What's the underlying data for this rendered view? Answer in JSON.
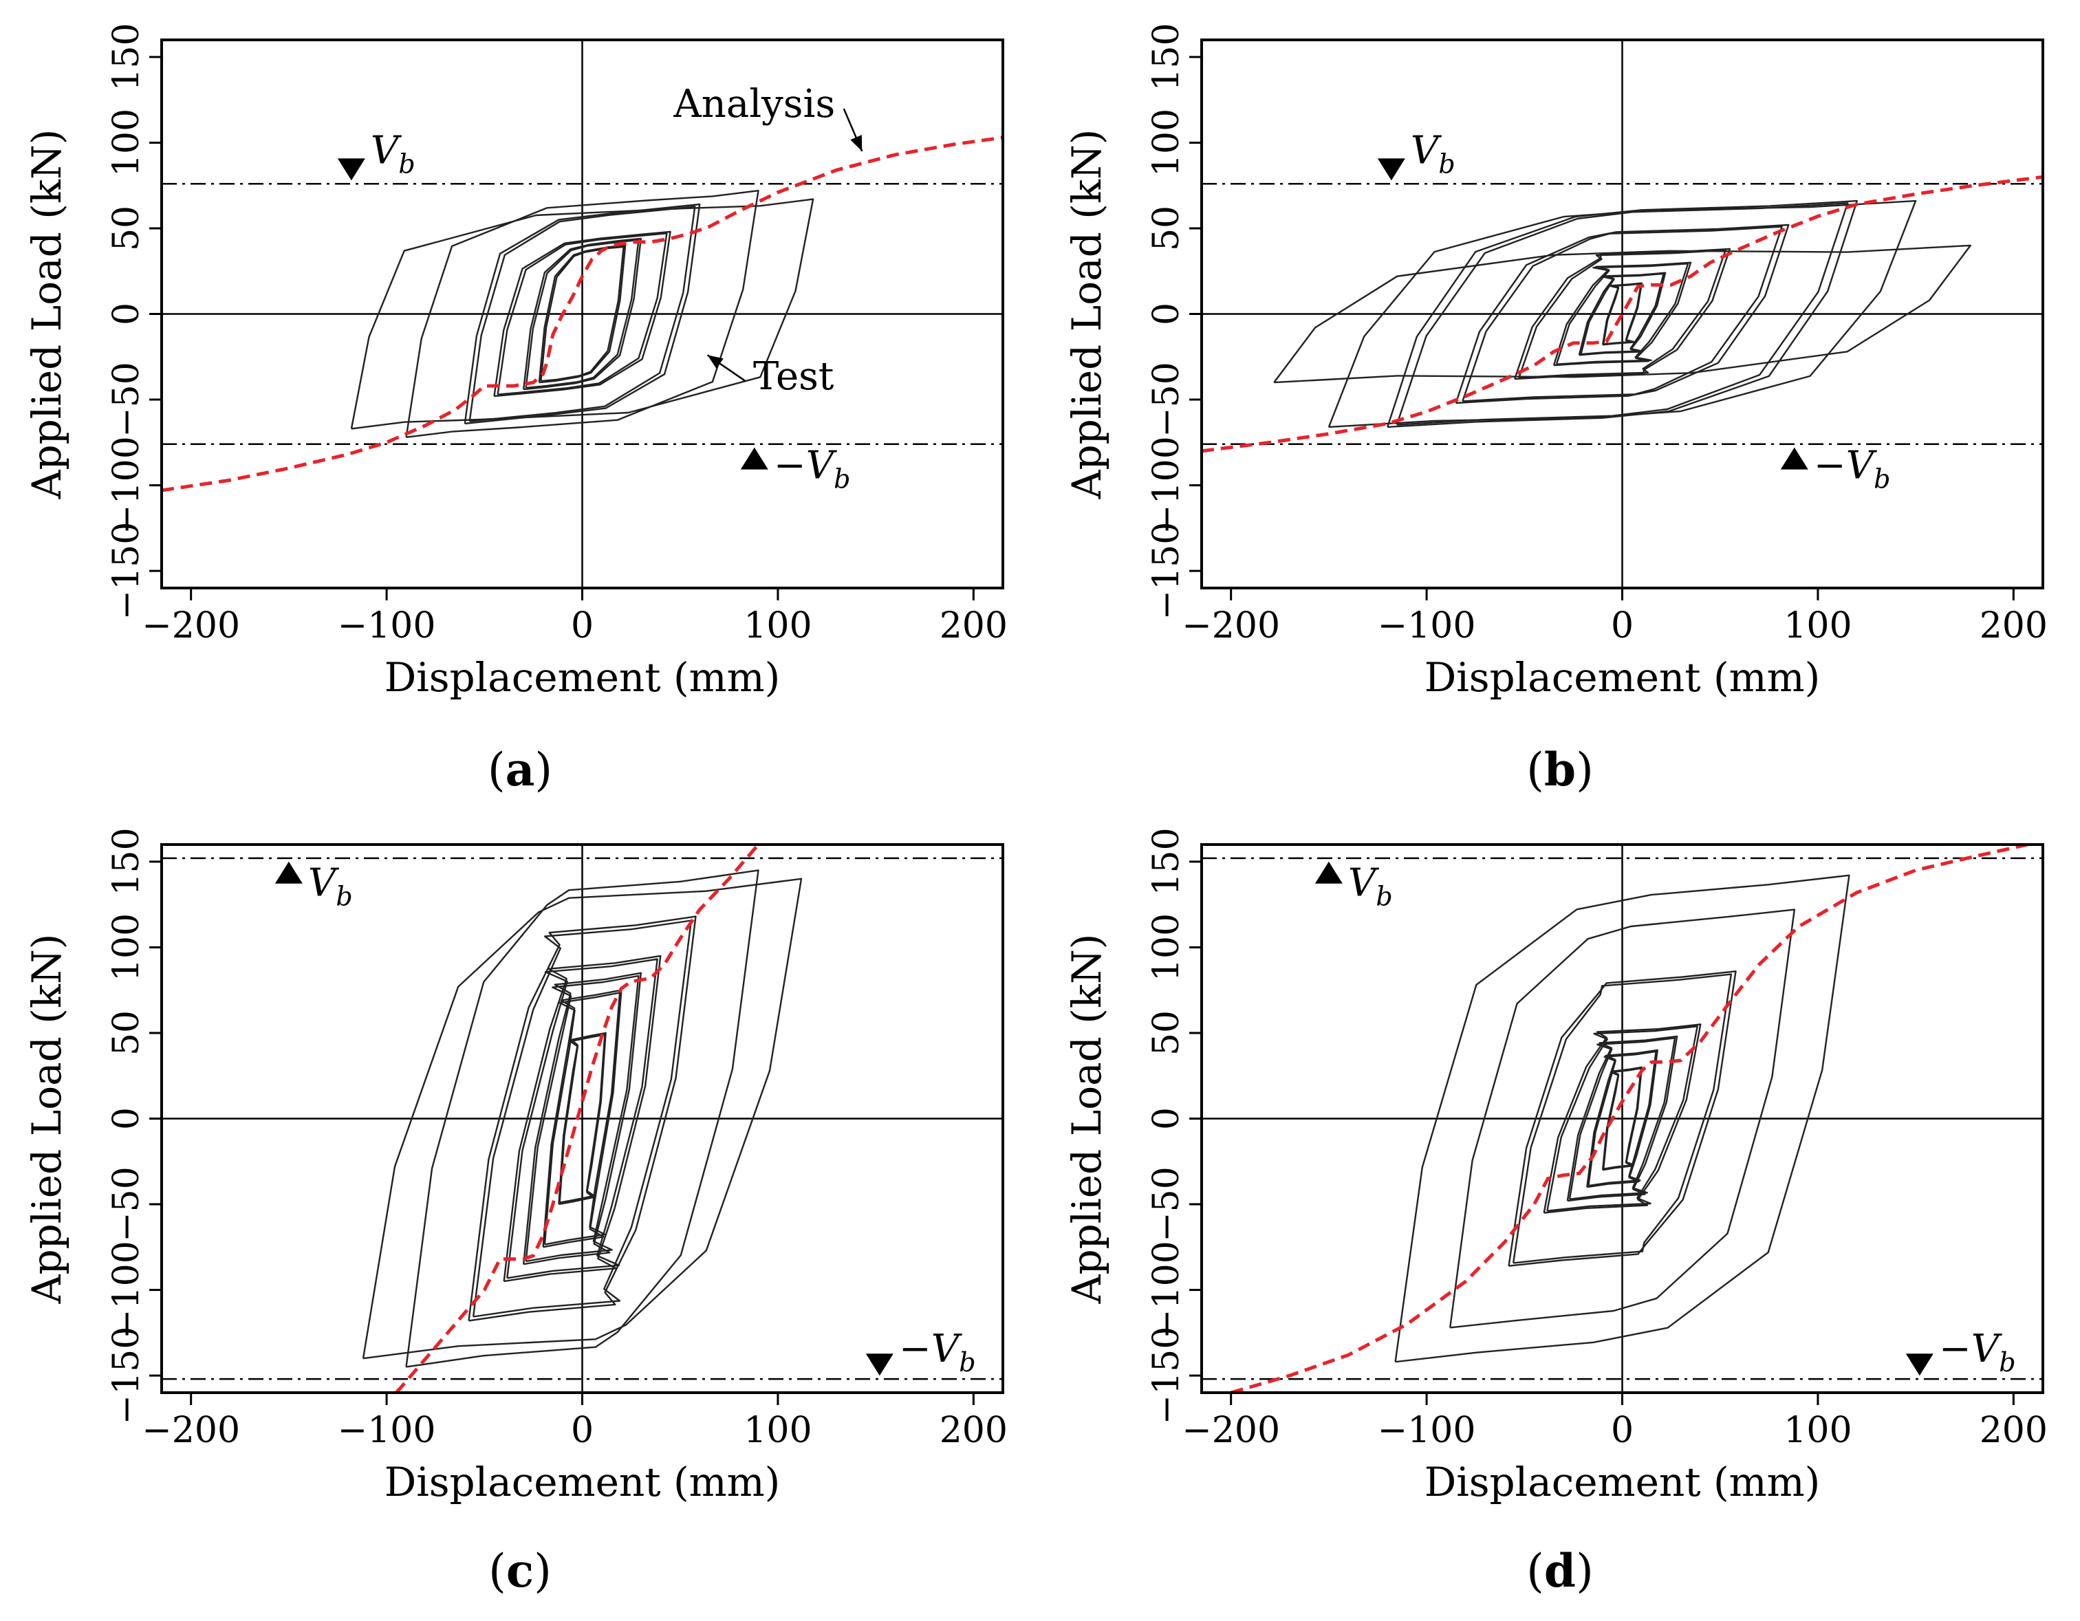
{
  "figure": {
    "captions": [
      "a",
      "b",
      "c",
      "d"
    ]
  },
  "chart_data": [
    {
      "id": "a",
      "type": "line",
      "xlabel": "Displacement (mm)",
      "ylabel": "Applied Load (kN)",
      "xlim": [
        -215,
        215
      ],
      "ylim": [
        -160,
        160
      ],
      "xticks": [
        -200,
        -100,
        0,
        100,
        200
      ],
      "yticks": [
        -150,
        -100,
        -50,
        0,
        50,
        100,
        150
      ],
      "xtick_labels": [
        "−200",
        "−100",
        "0",
        "100",
        "200"
      ],
      "ytick_labels": [
        "−150",
        "−100",
        "−50",
        "0",
        "50",
        "100",
        "150"
      ],
      "vb": 76,
      "vb_label": "V",
      "vb_sub": "b",
      "neg_sign": "−",
      "vb_marker_up": false,
      "vb_marker_x": 118,
      "annotations": [
        {
          "text": "Analysis",
          "x": 88,
          "y": 115,
          "ax": 143,
          "ay": 95
        },
        {
          "text": "Test",
          "x": 108,
          "y": -44,
          "ax": 64,
          "ay": -24
        }
      ],
      "series": [
        {
          "name": "Analysis",
          "color": "#e8232a",
          "points": [
            [
              -215,
              -103
            ],
            [
              -180,
              -97
            ],
            [
              -150,
              -90
            ],
            [
              -120,
              -82
            ],
            [
              -100,
              -75
            ],
            [
              -80,
              -65
            ],
            [
              -65,
              -56
            ],
            [
              -55,
              -47
            ],
            [
              -50,
              -42
            ],
            [
              -40,
              -42
            ],
            [
              -35,
              -42
            ],
            [
              -25,
              -40
            ],
            [
              -20,
              -35
            ],
            [
              -18,
              -28
            ],
            [
              -15,
              -12
            ],
            [
              -10,
              0
            ],
            [
              -5,
              10
            ],
            [
              0,
              22
            ],
            [
              5,
              32
            ],
            [
              10,
              37
            ],
            [
              15,
              40
            ],
            [
              20,
              41
            ],
            [
              27,
              42
            ],
            [
              35,
              42
            ],
            [
              45,
              44
            ],
            [
              55,
              47
            ],
            [
              65,
              51
            ],
            [
              80,
              60
            ],
            [
              100,
              71
            ],
            [
              130,
              84
            ],
            [
              160,
              93
            ],
            [
              190,
              99
            ],
            [
              215,
              103
            ]
          ]
        },
        {
          "name": "Test",
          "color": "#222222",
          "loops": [
            {
              "xmax": 22,
              "ymax": 40,
              "w": 9,
              "h": 6,
              "cycles": 2
            },
            {
              "xmax": 30,
              "ymax": 44,
              "w": 12,
              "h": 8,
              "cycles": 2
            },
            {
              "xmax": 45,
              "ymax": 48,
              "w": 16,
              "h": 10,
              "cycles": 2
            },
            {
              "xmax": 60,
              "ymax": 64,
              "w": 20,
              "h": 14,
              "cycles": 2
            },
            {
              "xmax": 90,
              "ymax": 72,
              "w": 26,
              "h": 22,
              "cycles": 1
            },
            {
              "xmax": 118,
              "ymax": 67,
              "w": 30,
              "h": 26,
              "cycles": 1
            }
          ]
        }
      ]
    },
    {
      "id": "b",
      "type": "line",
      "xlabel": "Displacement (mm)",
      "ylabel": "Applied Load (kN)",
      "xlim": [
        -215,
        215
      ],
      "ylim": [
        -160,
        160
      ],
      "xticks": [
        -200,
        -100,
        0,
        100,
        200
      ],
      "yticks": [
        -150,
        -100,
        -50,
        0,
        50,
        100,
        150
      ],
      "xtick_labels": [
        "−200",
        "−100",
        "0",
        "100",
        "200"
      ],
      "ytick_labels": [
        "−150",
        "−100",
        "−50",
        "0",
        "50",
        "100",
        "150"
      ],
      "vb": 76,
      "vb_label": "V",
      "vb_sub": "b",
      "neg_sign": "−",
      "vb_marker_up": false,
      "vb_marker_x": 118,
      "annotations": [],
      "series": [
        {
          "name": "Analysis",
          "color": "#e8232a",
          "points": [
            [
              -215,
              -80
            ],
            [
              -180,
              -75
            ],
            [
              -150,
              -70
            ],
            [
              -120,
              -64
            ],
            [
              -100,
              -57
            ],
            [
              -80,
              -48
            ],
            [
              -60,
              -38
            ],
            [
              -45,
              -30
            ],
            [
              -35,
              -22
            ],
            [
              -25,
              -17
            ],
            [
              -15,
              -17
            ],
            [
              -8,
              -16
            ],
            [
              -5,
              -10
            ],
            [
              0,
              0
            ],
            [
              5,
              10
            ],
            [
              8,
              16
            ],
            [
              15,
              17
            ],
            [
              25,
              17
            ],
            [
              35,
              22
            ],
            [
              45,
              30
            ],
            [
              60,
              38
            ],
            [
              80,
              48
            ],
            [
              100,
              57
            ],
            [
              120,
              64
            ],
            [
              150,
              70
            ],
            [
              180,
              75
            ],
            [
              215,
              80
            ]
          ]
        },
        {
          "name": "Test",
          "color": "#222222",
          "loops": [
            {
              "xmax": 10,
              "ymax": 18,
              "w": 7,
              "h": 5,
              "cycles": 2
            },
            {
              "xmax": 22,
              "ymax": 24,
              "w": 14,
              "h": 8,
              "cycles": 2
            },
            {
              "xmax": 35,
              "ymax": 30,
              "w": 22,
              "h": 10,
              "cycles": 2
            },
            {
              "xmax": 55,
              "ymax": 38,
              "w": 30,
              "h": 12,
              "cycles": 2
            },
            {
              "xmax": 85,
              "ymax": 52,
              "w": 40,
              "h": 16,
              "cycles": 2
            },
            {
              "xmax": 120,
              "ymax": 66,
              "w": 50,
              "h": 20,
              "cycles": 2
            },
            {
              "xmax": 150,
              "ymax": 66,
              "w": 60,
              "h": 24,
              "cycles": 1
            },
            {
              "xmax": 178,
              "ymax": 40,
              "w": 70,
              "h": 26,
              "cycles": 1
            }
          ]
        }
      ]
    },
    {
      "id": "c",
      "type": "line",
      "xlabel": "Displacement (mm)",
      "ylabel": "Applied Load (kN)",
      "xlim": [
        -215,
        215
      ],
      "ylim": [
        -160,
        160
      ],
      "xticks": [
        -200,
        -100,
        0,
        100,
        200
      ],
      "yticks": [
        -150,
        -100,
        -50,
        0,
        50,
        100,
        150
      ],
      "xtick_labels": [
        "−200",
        "−100",
        "0",
        "100",
        "200"
      ],
      "ytick_labels": [
        "−150",
        "−100",
        "−50",
        "0",
        "50",
        "100",
        "150"
      ],
      "vb": 152,
      "vb_label": "V",
      "vb_sub": "b",
      "neg_sign": "−",
      "vb_marker_up": true,
      "vb_marker_x": 150,
      "annotations": [],
      "series": [
        {
          "name": "Analysis",
          "color": "#e8232a",
          "points": [
            [
              -95,
              -160
            ],
            [
              -80,
              -140
            ],
            [
              -65,
              -120
            ],
            [
              -50,
              -100
            ],
            [
              -42,
              -82
            ],
            [
              -30,
              -82
            ],
            [
              -25,
              -80
            ],
            [
              -20,
              -68
            ],
            [
              -15,
              -50
            ],
            [
              -10,
              -30
            ],
            [
              -5,
              -10
            ],
            [
              0,
              10
            ],
            [
              5,
              30
            ],
            [
              10,
              48
            ],
            [
              15,
              65
            ],
            [
              20,
              76
            ],
            [
              25,
              80
            ],
            [
              35,
              82
            ],
            [
              42,
              90
            ],
            [
              50,
              105
            ],
            [
              60,
              122
            ],
            [
              75,
              140
            ],
            [
              90,
              160
            ]
          ]
        },
        {
          "name": "Test",
          "color": "#222222",
          "loops": [
            {
              "xmax": 12,
              "ymax": 50,
              "w": 8,
              "h": 10,
              "cycles": 2
            },
            {
              "xmax": 20,
              "ymax": 75,
              "w": 14,
              "h": 18,
              "cycles": 2
            },
            {
              "xmax": 30,
              "ymax": 85,
              "w": 20,
              "h": 24,
              "cycles": 2
            },
            {
              "xmax": 40,
              "ymax": 95,
              "w": 26,
              "h": 28,
              "cycles": 2
            },
            {
              "xmax": 58,
              "ymax": 118,
              "w": 34,
              "h": 34,
              "cycles": 2
            },
            {
              "xmax": 90,
              "ymax": 145,
              "w": 44,
              "h": 44,
              "cycles": 1
            },
            {
              "xmax": 112,
              "ymax": 140,
              "w": 54,
              "h": 48,
              "cycles": 1
            }
          ]
        }
      ]
    },
    {
      "id": "d",
      "type": "line",
      "xlabel": "Displacement (mm)",
      "ylabel": "Applied Load (kN)",
      "xlim": [
        -215,
        215
      ],
      "ylim": [
        -160,
        160
      ],
      "xticks": [
        -200,
        -100,
        0,
        100,
        200
      ],
      "yticks": [
        -150,
        -100,
        -50,
        0,
        50,
        100,
        150
      ],
      "xtick_labels": [
        "−200",
        "−100",
        "0",
        "100",
        "200"
      ],
      "ytick_labels": [
        "−150",
        "−100",
        "−50",
        "0",
        "50",
        "100",
        "150"
      ],
      "vb": 152,
      "vb_label": "V",
      "vb_sub": "b",
      "neg_sign": "−",
      "vb_marker_up": true,
      "vb_marker_x": 150,
      "annotations": [],
      "series": [
        {
          "name": "Analysis",
          "color": "#e8232a",
          "points": [
            [
              -200,
              -160
            ],
            [
              -170,
              -150
            ],
            [
              -140,
              -138
            ],
            [
              -110,
              -120
            ],
            [
              -80,
              -95
            ],
            [
              -60,
              -72
            ],
            [
              -45,
              -50
            ],
            [
              -38,
              -35
            ],
            [
              -30,
              -33
            ],
            [
              -22,
              -32
            ],
            [
              -15,
              -22
            ],
            [
              -10,
              -10
            ],
            [
              0,
              10
            ],
            [
              10,
              28
            ],
            [
              15,
              33
            ],
            [
              22,
              33
            ],
            [
              30,
              34
            ],
            [
              40,
              45
            ],
            [
              55,
              68
            ],
            [
              70,
              90
            ],
            [
              90,
              112
            ],
            [
              120,
              132
            ],
            [
              150,
              145
            ],
            [
              180,
              153
            ],
            [
              215,
              162
            ]
          ]
        },
        {
          "name": "Test",
          "color": "#222222",
          "loops": [
            {
              "xmax": 10,
              "ymax": 30,
              "w": 7,
              "h": 8,
              "cycles": 2
            },
            {
              "xmax": 18,
              "ymax": 40,
              "w": 12,
              "h": 12,
              "cycles": 2
            },
            {
              "xmax": 28,
              "ymax": 48,
              "w": 18,
              "h": 15,
              "cycles": 2
            },
            {
              "xmax": 40,
              "ymax": 55,
              "w": 24,
              "h": 18,
              "cycles": 2
            },
            {
              "xmax": 58,
              "ymax": 86,
              "w": 30,
              "h": 22,
              "cycles": 2
            },
            {
              "xmax": 88,
              "ymax": 122,
              "w": 38,
              "h": 28,
              "cycles": 1
            },
            {
              "xmax": 116,
              "ymax": 142,
              "w": 46,
              "h": 36,
              "cycles": 1
            }
          ]
        }
      ]
    }
  ]
}
